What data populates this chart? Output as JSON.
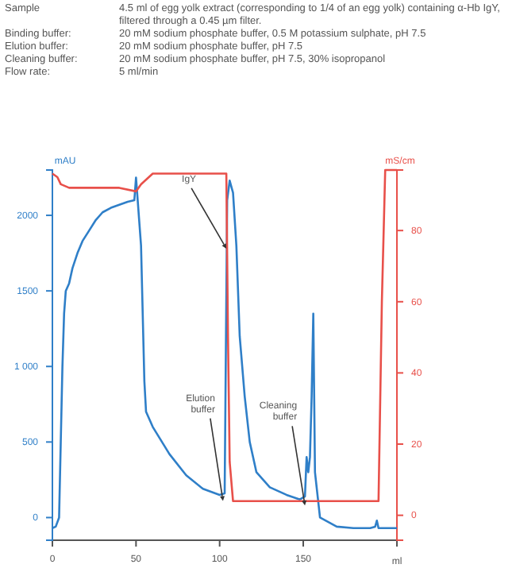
{
  "chart_data": {
    "type": "line",
    "annotations": [
      "Sample",
      "4.5 ml of egg yolk extract (corresponding to 1/4 of an egg yolk) containing α-Hb IgY, filtered through a 0.45 µm filter.",
      "Binding buffer:",
      "20 mM sodium phosphate buffer, 0.5 M potassium sulphate, pH 7.5",
      "Elution buffer:",
      "20 mM sodium phosphate buffer, pH 7.5",
      "Cleaning buffer:",
      "20 mM sodium phosphate buffer, pH 7.5, 30% isopropanol",
      "Flow rate:",
      "5 ml/min",
      {
        "text": "IgY",
        "x": 104,
        "y": 1780
      },
      {
        "text": "Elution buffer",
        "x": 102,
        "y": 110
      },
      {
        "text": "Cleaning buffer",
        "x": 151,
        "y": 80
      }
    ],
    "xlabel": "ml",
    "ylabel": "mAU",
    "y2label": "mS/cm",
    "xlim": [
      0,
      206
    ],
    "xticks": [
      0,
      50,
      100,
      150
    ],
    "ylim": [
      -150,
      2300
    ],
    "yticks": [
      0,
      500,
      {
        "value": 1000,
        "label": "1 000"
      },
      1500,
      2000
    ],
    "y2lim": [
      -7,
      97
    ],
    "y2ticks": [
      0,
      20,
      40,
      60,
      80
    ],
    "series": [
      {
        "color": "#2f7fc8",
        "x": [
          0,
          2,
          4,
          5,
          6,
          7,
          8,
          10,
          12,
          15,
          18,
          22,
          26,
          30,
          35,
          40,
          45,
          49,
          50,
          51,
          53,
          55,
          56,
          60,
          70,
          80,
          90,
          100,
          103,
          104.5,
          106,
          108,
          110,
          112,
          115,
          118,
          122,
          130,
          140,
          148,
          151,
          152,
          153,
          154,
          155,
          156,
          157,
          158,
          160,
          170,
          180,
          190,
          193,
          194,
          195,
          206
        ],
        "values": [
          -70,
          -60,
          0,
          500,
          1000,
          1350,
          1500,
          1550,
          1650,
          1750,
          1830,
          1900,
          1970,
          2020,
          2050,
          2070,
          2090,
          2100,
          2250,
          2100,
          1800,
          900,
          700,
          600,
          420,
          280,
          190,
          150,
          160,
          2100,
          2230,
          2150,
          1800,
          1200,
          800,
          500,
          300,
          200,
          150,
          120,
          140,
          400,
          300,
          400,
          800,
          1350,
          300,
          200,
          0,
          -60,
          -70,
          -70,
          -60,
          -20,
          -70,
          -70
        ]
      },
      {
        "axis": "y2",
        "color": "#e8504a",
        "x": [
          0,
          3,
          5,
          10,
          20,
          40,
          50,
          53,
          60,
          80,
          100,
          104,
          105,
          106,
          108,
          120,
          150,
          180,
          195,
          197,
          199,
          206
        ],
        "values": [
          96,
          95,
          93,
          92,
          92,
          92,
          91,
          93,
          96,
          96,
          96,
          96,
          50,
          15,
          4,
          4,
          4,
          4,
          4,
          60,
          97,
          97
        ]
      }
    ]
  }
}
